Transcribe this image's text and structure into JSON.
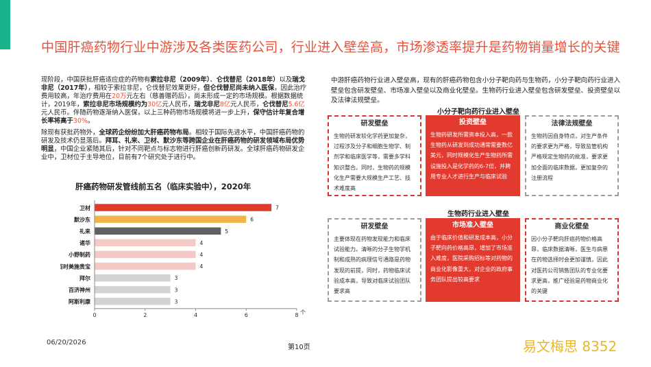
{
  "title": "中国肝癌药物行业中游涉及各类医药公司，行业进入壁垒高，市场渗透率提升是药物销量增长的关键",
  "left": {
    "p1": [
      {
        "t": "现阶段，中国获批肝癌适应症的药物有",
        "s": ""
      },
      {
        "t": "索拉非尼（2009年）",
        "s": "b"
      },
      {
        "t": "、",
        "s": ""
      },
      {
        "t": "仑伐替尼（2018年）",
        "s": "b"
      },
      {
        "t": "以及",
        "s": ""
      },
      {
        "t": "瑞戈非尼（2017年）",
        "s": "b"
      },
      {
        "t": "，相较于索拉非尼，仑伐替尼效果更好，",
        "s": ""
      },
      {
        "t": "但仑伐替尼尚未纳入医保",
        "s": "b"
      },
      {
        "t": "，因此治疗费用较高，年治疗费用在",
        "s": ""
      },
      {
        "t": "20万",
        "s": "r"
      },
      {
        "t": "元左右（慈善赠药后），尚未形成一定的市场规模。根据数据统计，2019年，",
        "s": ""
      },
      {
        "t": "索拉非尼市场规模约为",
        "s": "b"
      },
      {
        "t": "30亿",
        "s": "r"
      },
      {
        "t": "元人民币，",
        "s": ""
      },
      {
        "t": "瑞戈非尼",
        "s": "b"
      },
      {
        "t": "8亿",
        "s": "r"
      },
      {
        "t": "元人民币，",
        "s": ""
      },
      {
        "t": "仑伐替尼",
        "s": "b"
      },
      {
        "t": "5.6亿",
        "s": "r"
      },
      {
        "t": "元人民币。伴随药物逐渐纳入医保，以上三种药物市场规模将进一步上升，",
        "s": ""
      },
      {
        "t": "保守估计年复合增长率将高于",
        "s": "b"
      },
      {
        "t": "30%",
        "s": "r"
      },
      {
        "t": "。",
        "s": ""
      }
    ],
    "p2": [
      {
        "t": "除现有获批药物外，",
        "s": ""
      },
      {
        "t": "全球药企纷纷加大肝癌药物布局",
        "s": "b"
      },
      {
        "t": "。相较于国际先进水平，中国肝癌药物的研发及技术仍显落后。",
        "s": ""
      },
      {
        "t": "拜耳、礼来、卫材、默沙东等跨国企业在肝癌药物的研发领域布局优势明显",
        "s": "b"
      },
      {
        "t": "，中国企业紧随其后，针对不同靶点与标志物进行肝癌创新药研发。全球肝癌药物研发企业中，卫材位于主导地位，目前有7个研究处于进行中。",
        "s": ""
      }
    ]
  },
  "chart_data": {
    "type": "bar",
    "orientation": "horizontal",
    "title": "肝癌药物研发管线前五名（临床实验中），2020年",
    "categories": [
      "卫材",
      "默沙东",
      "礼来",
      "诸华",
      "小野制药",
      "百时美施贵宝",
      "拜尔",
      "百济神州",
      "阿斯利康"
    ],
    "values": [
      7,
      6,
      5,
      4,
      4,
      4,
      3,
      3,
      3
    ],
    "colors": [
      "#e03b2d",
      "#f2b54a",
      "#606060",
      "#f4c9c6",
      "#f4c9c6",
      "#f4c9c6",
      "#d3d3d3",
      "#d3d3d3",
      "#d3d3d3"
    ],
    "xlim": [
      0,
      8
    ],
    "xticks": [
      "0",
      "2",
      "4",
      "6",
      "8"
    ],
    "xunit": "个",
    "grid": false
  },
  "right": {
    "intro": "中游肝癌药物行业进入壁垒高，现有的肝癌药物包含小分子靶向药与生物药，小分子靶向药行业进入壁垒包含研发壁垒、市场准入壁垒以及商业化壁垒。生物药行业进入壁垒包含研发壁垒、投资壁垒以及法律法规壁垒。",
    "section1_head": "小分子靶向药行业进入壁垒",
    "section2_head": "生物药行业进入壁垒",
    "top_boxes": [
      {
        "title": "研发壁垒",
        "text": "生物药研发较化学药更加复杂，过程涉及分子和细胞生物学、制剂学和临床医学等，需要多学科知识整合。同时，生物药的规模化生产需要大规模生产工艺、技术难度高"
      },
      {
        "title": "投资壁垒",
        "text": "生物药研发所需资本投入高，一款生物药从研发到成功通常需要数亿美元，同时规模化生产生物药所需设施投入是化学药的6-7倍，并聘用专业人才进行生产与临床试验"
      },
      {
        "title": "法律法规壁垒",
        "text": "生物药因自身特点，对生产条件的要求更为严格，导致监管机构严格规定生物药的批准，要求更加全面的临床数据，更加复杂的注册流程"
      }
    ],
    "bottom_boxes": [
      {
        "title": "研发壁垒",
        "text": "主要体现在药物发现能力和临床试验能力。清晰的分子生物学机制和成熟的病理信号通路是药物发现的前提，同时，药物临床试验成本高，导致对临床试验团队要求高"
      },
      {
        "title": "市场准入壁垒",
        "text": "由于临床价值和研发成本高，小分子靶向药价格高昂，增加了市场准入难度，医院采购招标等对药物的商业化影像重大，对企业的政府事务团队提出较高要求"
      },
      {
        "title": "商业化壁垒",
        "text": "因小分子靶向肝癌药物价格高昂，临床数据清晰，医生与病患在药物选择时会更加谨慎，因此对医药公司销售团队的专业化要求更高，推广经验是药物商业化的关键"
      }
    ]
  },
  "footer": {
    "date": "06/20/2026",
    "page": "第10页",
    "brand": "易文梅思 8352"
  }
}
